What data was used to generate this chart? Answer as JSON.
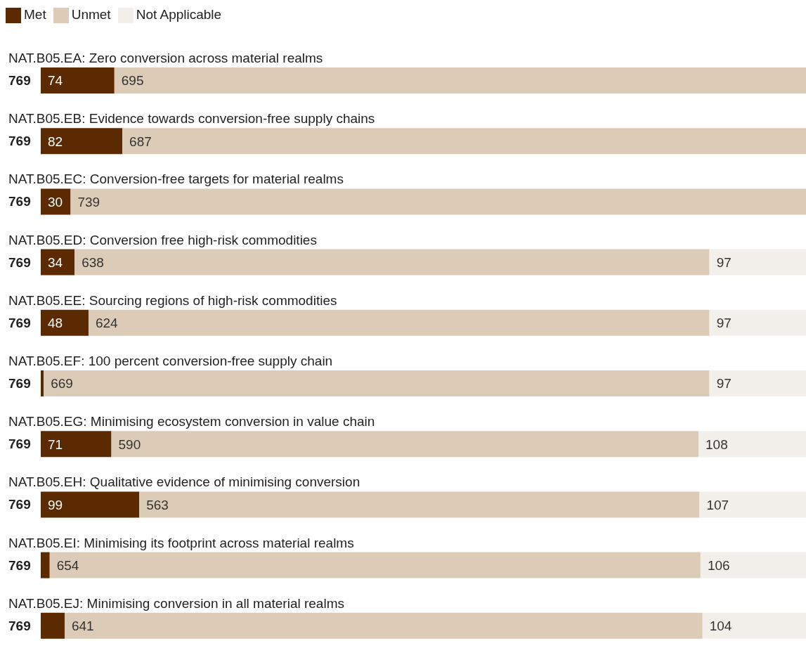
{
  "chart_data": {
    "type": "bar",
    "orientation": "horizontal",
    "stacked": true,
    "legend": "top left",
    "categories": [
      "NAT.B05.EA: Zero conversion across material realms",
      "NAT.B05.EB: Evidence towards conversion-free supply chains",
      "NAT.B05.EC: Conversion-free targets for material realms",
      "NAT.B05.ED: Conversion free high-risk commodities",
      "NAT.B05.EE: Sourcing regions of high-risk commodities",
      "NAT.B05.EF: 100 percent conversion-free supply chain",
      "NAT.B05.EG: Minimising ecosystem conversion in value chain",
      "NAT.B05.EH: Qualitative evidence of minimising conversion",
      "NAT.B05.EI: Minimising its footprint across material realms",
      "NAT.B05.EJ: Minimising conversion in all material realms"
    ],
    "totals": [
      "769",
      "769",
      "769",
      "769",
      "769",
      "769",
      "769",
      "769",
      "769",
      "769"
    ],
    "series": [
      {
        "name": "Met",
        "color": "#5c2a00",
        "values": [
          74,
          82,
          30,
          34,
          48,
          3,
          71,
          99,
          9,
          24
        ],
        "value_labels": [
          "74",
          "82",
          "30",
          "34",
          "48",
          null,
          "71",
          "99",
          null,
          null
        ]
      },
      {
        "name": "Unmet",
        "color": "#dccbb7",
        "values": [
          695,
          687,
          739,
          638,
          624,
          669,
          590,
          563,
          654,
          641
        ],
        "value_labels": [
          "695",
          "687",
          "739",
          "638",
          "624",
          "669",
          "590",
          "563",
          "654",
          "641"
        ]
      },
      {
        "name": "Not Applicable",
        "color": "#f3efeb",
        "values": [
          0,
          0,
          0,
          97,
          97,
          97,
          108,
          107,
          106,
          104
        ],
        "value_labels": [
          null,
          null,
          null,
          "97",
          "97",
          "97",
          "108",
          "107",
          "106",
          "104"
        ]
      }
    ]
  }
}
